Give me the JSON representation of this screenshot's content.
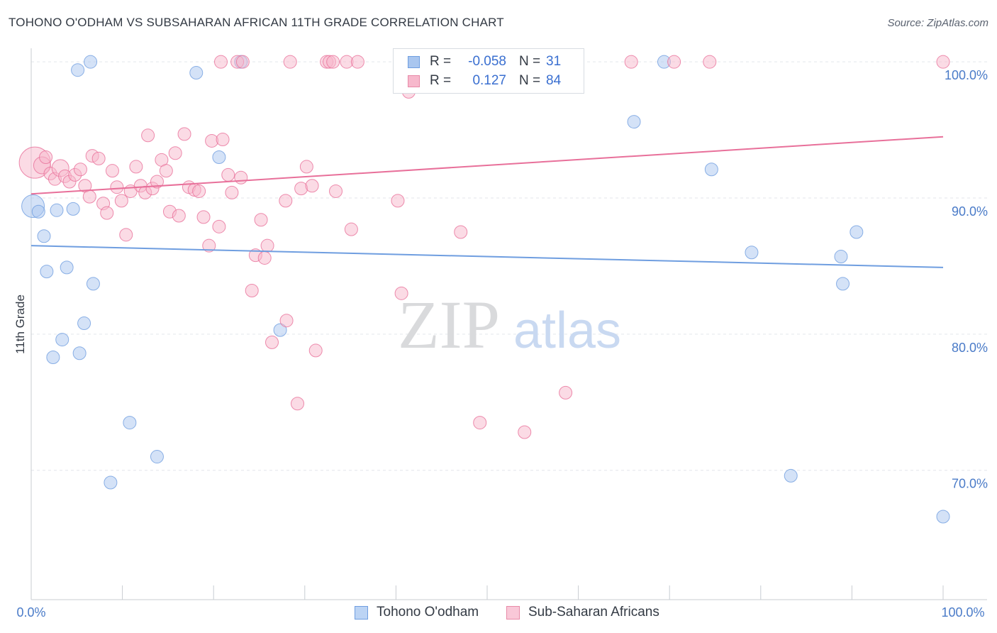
{
  "title": "TOHONO O'ODHAM VS SUBSAHARAN AFRICAN 11TH GRADE CORRELATION CHART",
  "source": "Source: ZipAtlas.com",
  "watermark": {
    "zip": "ZIP",
    "atlas": "atlas"
  },
  "legend": {
    "rows": [
      {
        "r_label": "R =",
        "r_value": "-0.058",
        "n_label": "N =",
        "n_value": "31",
        "color": "#a9c6ef",
        "border": "#6f9ee0"
      },
      {
        "r_label": "R =",
        "r_value": "0.127",
        "n_label": "N =",
        "n_value": "84",
        "color": "#f7b8cc",
        "border": "#e88aa8"
      }
    ]
  },
  "bottom_legend": [
    {
      "label": "Tohono O'odham",
      "color": "#bcd4f4",
      "border": "#6f9ee0"
    },
    {
      "label": "Sub-Saharan Africans",
      "color": "#f9c8d8",
      "border": "#e88aa8"
    }
  ],
  "chart_data": {
    "type": "scatter",
    "title": "TOHONO O'ODHAM VS SUBSAHARAN AFRICAN 11TH GRADE CORRELATION CHART",
    "xlabel": "",
    "ylabel": "11th Grade",
    "xlim": [
      0,
      100
    ],
    "ylim": [
      60.5,
      101
    ],
    "x_tick_labels": [
      "0.0%",
      "100.0%"
    ],
    "y_ticks": [
      {
        "value": 100,
        "label": "100.0%"
      },
      {
        "value": 90,
        "label": "90.0%"
      },
      {
        "value": 80,
        "label": "80.0%"
      },
      {
        "value": 70,
        "label": "70.0%"
      }
    ],
    "grid": true,
    "legend_position": "top-center",
    "series": [
      {
        "name": "Tohono O'odham",
        "color": "#6f9ee0",
        "fill": "#a9c6ef",
        "trend": {
          "x": [
            0,
            100
          ],
          "y": [
            86.5,
            84.9
          ]
        },
        "points": [
          {
            "x": 0.2,
            "y": 89.4,
            "s": 16
          },
          {
            "x": 0.8,
            "y": 89.0,
            "s": 9
          },
          {
            "x": 1.4,
            "y": 87.2,
            "s": 9
          },
          {
            "x": 1.7,
            "y": 84.6,
            "s": 9
          },
          {
            "x": 2.4,
            "y": 78.3,
            "s": 9
          },
          {
            "x": 2.8,
            "y": 89.1,
            "s": 9
          },
          {
            "x": 3.4,
            "y": 79.6,
            "s": 9
          },
          {
            "x": 3.9,
            "y": 84.9,
            "s": 9
          },
          {
            "x": 4.6,
            "y": 89.2,
            "s": 9
          },
          {
            "x": 5.1,
            "y": 99.4,
            "s": 9
          },
          {
            "x": 5.3,
            "y": 78.6,
            "s": 9
          },
          {
            "x": 5.8,
            "y": 80.8,
            "s": 9
          },
          {
            "x": 6.5,
            "y": 100.0,
            "s": 9
          },
          {
            "x": 6.8,
            "y": 83.7,
            "s": 9
          },
          {
            "x": 8.7,
            "y": 69.1,
            "s": 9
          },
          {
            "x": 10.8,
            "y": 73.5,
            "s": 9
          },
          {
            "x": 13.8,
            "y": 71.0,
            "s": 9
          },
          {
            "x": 18.1,
            "y": 99.2,
            "s": 9
          },
          {
            "x": 20.6,
            "y": 93.0,
            "s": 9
          },
          {
            "x": 23.0,
            "y": 100.0,
            "s": 9
          },
          {
            "x": 27.3,
            "y": 80.3,
            "s": 9
          },
          {
            "x": 47.0,
            "y": 100.0,
            "s": 9
          },
          {
            "x": 66.1,
            "y": 95.6,
            "s": 9
          },
          {
            "x": 69.4,
            "y": 100.0,
            "s": 9
          },
          {
            "x": 74.6,
            "y": 92.1,
            "s": 9
          },
          {
            "x": 79.0,
            "y": 86.0,
            "s": 9
          },
          {
            "x": 83.3,
            "y": 69.6,
            "s": 9
          },
          {
            "x": 88.8,
            "y": 85.7,
            "s": 9
          },
          {
            "x": 89.0,
            "y": 83.7,
            "s": 9
          },
          {
            "x": 90.5,
            "y": 87.5,
            "s": 9
          },
          {
            "x": 100.0,
            "y": 66.6,
            "s": 9
          }
        ]
      },
      {
        "name": "Sub-Saharan Africans",
        "color": "#e8709a",
        "fill": "#f7b8cc",
        "trend": {
          "x": [
            0,
            100
          ],
          "y": [
            90.3,
            94.5
          ]
        },
        "points": [
          {
            "x": 0.4,
            "y": 92.6,
            "s": 22
          },
          {
            "x": 1.2,
            "y": 92.4,
            "s": 12
          },
          {
            "x": 1.6,
            "y": 93.0,
            "s": 9
          },
          {
            "x": 2.1,
            "y": 91.8,
            "s": 9
          },
          {
            "x": 2.6,
            "y": 91.4,
            "s": 9
          },
          {
            "x": 3.2,
            "y": 92.2,
            "s": 12
          },
          {
            "x": 3.7,
            "y": 91.6,
            "s": 9
          },
          {
            "x": 4.2,
            "y": 91.2,
            "s": 9
          },
          {
            "x": 4.8,
            "y": 91.7,
            "s": 9
          },
          {
            "x": 5.4,
            "y": 92.1,
            "s": 9
          },
          {
            "x": 5.9,
            "y": 90.9,
            "s": 9
          },
          {
            "x": 6.4,
            "y": 90.1,
            "s": 9
          },
          {
            "x": 6.7,
            "y": 93.1,
            "s": 9
          },
          {
            "x": 7.4,
            "y": 92.9,
            "s": 9
          },
          {
            "x": 7.9,
            "y": 89.6,
            "s": 9
          },
          {
            "x": 8.3,
            "y": 88.9,
            "s": 9
          },
          {
            "x": 8.9,
            "y": 92.0,
            "s": 9
          },
          {
            "x": 9.4,
            "y": 90.8,
            "s": 9
          },
          {
            "x": 9.9,
            "y": 89.8,
            "s": 9
          },
          {
            "x": 10.4,
            "y": 87.3,
            "s": 9
          },
          {
            "x": 10.9,
            "y": 90.5,
            "s": 9
          },
          {
            "x": 11.5,
            "y": 92.3,
            "s": 9
          },
          {
            "x": 12.0,
            "y": 90.9,
            "s": 9
          },
          {
            "x": 12.5,
            "y": 90.4,
            "s": 9
          },
          {
            "x": 12.8,
            "y": 94.6,
            "s": 9
          },
          {
            "x": 13.3,
            "y": 90.7,
            "s": 9
          },
          {
            "x": 13.8,
            "y": 91.2,
            "s": 9
          },
          {
            "x": 14.3,
            "y": 92.8,
            "s": 9
          },
          {
            "x": 14.8,
            "y": 92.0,
            "s": 9
          },
          {
            "x": 15.2,
            "y": 89.0,
            "s": 9
          },
          {
            "x": 15.8,
            "y": 93.3,
            "s": 9
          },
          {
            "x": 16.2,
            "y": 88.7,
            "s": 9
          },
          {
            "x": 16.8,
            "y": 94.7,
            "s": 9
          },
          {
            "x": 17.3,
            "y": 90.8,
            "s": 9
          },
          {
            "x": 17.9,
            "y": 90.6,
            "s": 9
          },
          {
            "x": 18.4,
            "y": 90.5,
            "s": 9
          },
          {
            "x": 18.9,
            "y": 88.6,
            "s": 9
          },
          {
            "x": 19.5,
            "y": 86.5,
            "s": 9
          },
          {
            "x": 19.8,
            "y": 94.2,
            "s": 9
          },
          {
            "x": 20.6,
            "y": 87.9,
            "s": 9
          },
          {
            "x": 21.0,
            "y": 94.3,
            "s": 9
          },
          {
            "x": 21.6,
            "y": 91.7,
            "s": 9
          },
          {
            "x": 22.0,
            "y": 90.4,
            "s": 9
          },
          {
            "x": 22.6,
            "y": 100.0,
            "s": 9
          },
          {
            "x": 23.0,
            "y": 91.5,
            "s": 9
          },
          {
            "x": 23.2,
            "y": 100.0,
            "s": 9
          },
          {
            "x": 24.2,
            "y": 83.2,
            "s": 9
          },
          {
            "x": 24.6,
            "y": 85.8,
            "s": 9
          },
          {
            "x": 25.2,
            "y": 88.4,
            "s": 9
          },
          {
            "x": 25.6,
            "y": 85.6,
            "s": 9
          },
          {
            "x": 25.9,
            "y": 86.5,
            "s": 9
          },
          {
            "x": 26.4,
            "y": 79.4,
            "s": 9
          },
          {
            "x": 27.9,
            "y": 89.8,
            "s": 9
          },
          {
            "x": 28.0,
            "y": 81.0,
            "s": 9
          },
          {
            "x": 28.4,
            "y": 100.0,
            "s": 9
          },
          {
            "x": 29.2,
            "y": 74.9,
            "s": 9
          },
          {
            "x": 29.6,
            "y": 90.7,
            "s": 9
          },
          {
            "x": 30.2,
            "y": 92.3,
            "s": 9
          },
          {
            "x": 30.8,
            "y": 90.9,
            "s": 9
          },
          {
            "x": 31.2,
            "y": 78.8,
            "s": 9
          },
          {
            "x": 32.4,
            "y": 100.0,
            "s": 9
          },
          {
            "x": 32.7,
            "y": 100.0,
            "s": 9
          },
          {
            "x": 33.1,
            "y": 100.0,
            "s": 9
          },
          {
            "x": 33.4,
            "y": 90.5,
            "s": 9
          },
          {
            "x": 34.6,
            "y": 100.0,
            "s": 9
          },
          {
            "x": 35.1,
            "y": 87.7,
            "s": 9
          },
          {
            "x": 35.8,
            "y": 100.0,
            "s": 9
          },
          {
            "x": 40.2,
            "y": 89.8,
            "s": 9
          },
          {
            "x": 40.6,
            "y": 83.0,
            "s": 9
          },
          {
            "x": 41.0,
            "y": 100.0,
            "s": 9
          },
          {
            "x": 41.4,
            "y": 97.8,
            "s": 9
          },
          {
            "x": 42.0,
            "y": 98.6,
            "s": 9
          },
          {
            "x": 47.1,
            "y": 87.5,
            "s": 9
          },
          {
            "x": 48.4,
            "y": 100.0,
            "s": 9
          },
          {
            "x": 49.2,
            "y": 73.5,
            "s": 9
          },
          {
            "x": 53.1,
            "y": 100.0,
            "s": 9
          },
          {
            "x": 54.1,
            "y": 72.8,
            "s": 9
          },
          {
            "x": 55.5,
            "y": 100.0,
            "s": 9
          },
          {
            "x": 58.6,
            "y": 75.7,
            "s": 9
          },
          {
            "x": 65.8,
            "y": 100.0,
            "s": 9
          },
          {
            "x": 70.5,
            "y": 100.0,
            "s": 9
          },
          {
            "x": 74.4,
            "y": 100.0,
            "s": 9
          },
          {
            "x": 100.0,
            "y": 100.0,
            "s": 9
          },
          {
            "x": 20.8,
            "y": 100.0,
            "s": 9
          }
        ]
      }
    ]
  }
}
